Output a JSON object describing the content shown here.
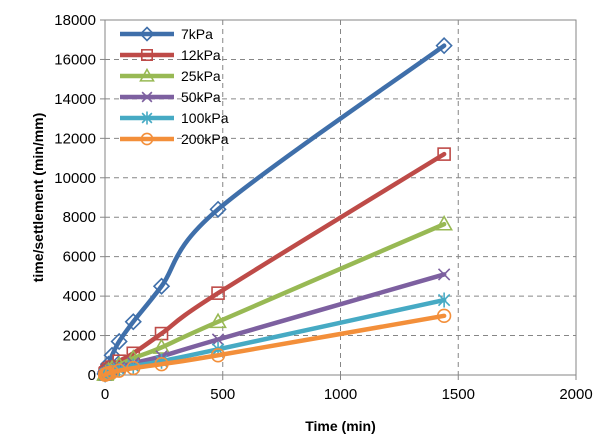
{
  "chart_data": {
    "type": "line",
    "title": "",
    "xlabel": "Time (min)",
    "ylabel": "time/settlement (min/mm)",
    "xlim": [
      0,
      2000
    ],
    "ylim": [
      0,
      18000
    ],
    "xticks": [
      0,
      500,
      1000,
      1500,
      2000
    ],
    "yticks": [
      0,
      2000,
      4000,
      6000,
      8000,
      10000,
      12000,
      14000,
      16000,
      18000
    ],
    "grid": "dashed, major gridlines",
    "legend": "top-left, inside plot",
    "series": [
      {
        "name": "7kPa",
        "color": "#3f6faa",
        "marker": "diamond",
        "points": [
          [
            0.5,
            50
          ],
          [
            1,
            60
          ],
          [
            2,
            100
          ],
          [
            4,
            180
          ],
          [
            8,
            300
          ],
          [
            15,
            550
          ],
          [
            30,
            1000
          ],
          [
            60,
            1700
          ],
          [
            120,
            2700
          ],
          [
            240,
            4500
          ],
          [
            480,
            8400
          ],
          [
            1440,
            16700
          ]
        ]
      },
      {
        "name": "12kPa",
        "color": "#be4b48",
        "marker": "square",
        "points": [
          [
            0.5,
            40
          ],
          [
            1,
            50
          ],
          [
            2,
            80
          ],
          [
            4,
            110
          ],
          [
            8,
            180
          ],
          [
            15,
            300
          ],
          [
            30,
            400
          ],
          [
            60,
            700
          ],
          [
            120,
            1100
          ],
          [
            240,
            2100
          ],
          [
            480,
            4150
          ],
          [
            1440,
            11200
          ]
        ]
      },
      {
        "name": "25kPa",
        "color": "#98b954",
        "marker": "triangle",
        "points": [
          [
            0.5,
            30
          ],
          [
            1,
            40
          ],
          [
            2,
            60
          ],
          [
            4,
            90
          ],
          [
            8,
            140
          ],
          [
            15,
            220
          ],
          [
            30,
            330
          ],
          [
            60,
            500
          ],
          [
            120,
            850
          ],
          [
            240,
            1400
          ],
          [
            480,
            2700
          ],
          [
            1440,
            7650
          ]
        ]
      },
      {
        "name": "50kPa",
        "color": "#7d60a0",
        "marker": "x",
        "points": [
          [
            0.5,
            25
          ],
          [
            1,
            30
          ],
          [
            2,
            50
          ],
          [
            4,
            70
          ],
          [
            8,
            100
          ],
          [
            15,
            160
          ],
          [
            30,
            240
          ],
          [
            60,
            380
          ],
          [
            120,
            600
          ],
          [
            240,
            950
          ],
          [
            480,
            1800
          ],
          [
            1440,
            5100
          ]
        ]
      },
      {
        "name": "100kPa",
        "color": "#46aac4",
        "marker": "star",
        "points": [
          [
            0.5,
            20
          ],
          [
            1,
            25
          ],
          [
            2,
            40
          ],
          [
            4,
            55
          ],
          [
            8,
            80
          ],
          [
            15,
            120
          ],
          [
            30,
            180
          ],
          [
            60,
            280
          ],
          [
            120,
            450
          ],
          [
            240,
            700
          ],
          [
            480,
            1300
          ],
          [
            1440,
            3800
          ]
        ]
      },
      {
        "name": "200kPa",
        "color": "#f38f3a",
        "marker": "circle",
        "points": [
          [
            0.5,
            15
          ],
          [
            1,
            20
          ],
          [
            2,
            30
          ],
          [
            4,
            45
          ],
          [
            8,
            60
          ],
          [
            15,
            90
          ],
          [
            30,
            140
          ],
          [
            60,
            220
          ],
          [
            120,
            350
          ],
          [
            240,
            550
          ],
          [
            480,
            1000
          ],
          [
            1440,
            3000
          ]
        ]
      }
    ]
  }
}
